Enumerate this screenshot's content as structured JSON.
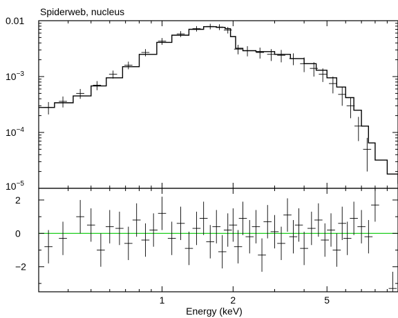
{
  "chart_data": {
    "type": "scatter",
    "title": "Spiderweb, nucleus",
    "xlabel": "Energy (keV)",
    "x_scale": "log",
    "xlim": [
      0.3,
      10
    ],
    "x_ticks": [
      {
        "value": 1,
        "label": "1"
      },
      {
        "value": 2,
        "label": "2"
      },
      {
        "value": 5,
        "label": "5"
      }
    ],
    "panels": [
      {
        "id": "spectrum",
        "y_scale": "log",
        "ylim": [
          1e-05,
          0.01
        ],
        "y_ticks": [
          {
            "value": 0.01,
            "base": "0.01",
            "exp": ""
          },
          {
            "value": 0.001,
            "base": "10",
            "exp": "−3"
          },
          {
            "value": 0.0001,
            "base": "10",
            "exp": "−4"
          },
          {
            "value": 1e-05,
            "base": "10",
            "exp": "−5"
          }
        ],
        "model_x": [
          0.3,
          0.35,
          0.42,
          0.5,
          0.58,
          0.68,
          0.8,
          0.95,
          1.1,
          1.3,
          1.5,
          1.7,
          1.85,
          1.95,
          2.05,
          2.2,
          2.5,
          3.0,
          3.5,
          4.0,
          4.5,
          5.0,
          5.5,
          6.0,
          6.5,
          7.0,
          7.5,
          8.0,
          9.0,
          10.0
        ],
        "model_y": [
          0.00028,
          0.00034,
          0.00045,
          0.00068,
          0.00095,
          0.0015,
          0.0025,
          0.0041,
          0.0055,
          0.007,
          0.0078,
          0.0076,
          0.0072,
          0.0052,
          0.0032,
          0.0029,
          0.0028,
          0.0025,
          0.0021,
          0.0017,
          0.0013,
          0.00095,
          0.00065,
          0.00042,
          0.00025,
          0.00013,
          6.5e-05,
          3.2e-05,
          1.8e-05,
          1.2e-05
        ],
        "data_x": [
          0.33,
          0.38,
          0.45,
          0.53,
          0.62,
          0.72,
          0.85,
          1.0,
          1.2,
          1.4,
          1.6,
          1.75,
          1.9,
          2.1,
          2.3,
          2.6,
          2.9,
          3.2,
          3.6,
          4.0,
          4.4,
          4.8,
          5.3,
          5.8,
          6.3,
          6.8,
          7.4
        ],
        "data_y": [
          0.00028,
          0.00036,
          0.0005,
          0.0007,
          0.0011,
          0.0016,
          0.0027,
          0.0043,
          0.0058,
          0.0072,
          0.0079,
          0.0077,
          0.0068,
          0.0031,
          0.0029,
          0.0027,
          0.0025,
          0.0024,
          0.0021,
          0.0017,
          0.0014,
          0.0011,
          0.00075,
          0.00048,
          0.0003,
          0.00013,
          5e-05
        ],
        "data_yerr": [
          7e-05,
          8e-05,
          0.0001,
          0.00013,
          0.00018,
          0.00025,
          0.0004,
          0.0006,
          0.0007,
          0.0008,
          0.0009,
          0.0009,
          0.0009,
          0.0006,
          0.0006,
          0.0006,
          0.0006,
          0.0006,
          0.0005,
          0.0005,
          0.0004,
          0.0003,
          0.00025,
          0.00018,
          0.00012,
          6e-05,
          3e-05
        ]
      },
      {
        "id": "residuals",
        "y_scale": "linear",
        "ylim": [
          -3.5,
          2.7
        ],
        "y_ticks": [
          {
            "value": 2,
            "label": "2"
          },
          {
            "value": 0,
            "label": "0"
          },
          {
            "value": -2,
            "label": "−2"
          }
        ],
        "zero_line_color": "#00c800",
        "residual_x": [
          0.33,
          0.38,
          0.45,
          0.5,
          0.55,
          0.6,
          0.66,
          0.72,
          0.78,
          0.85,
          0.92,
          1.0,
          1.1,
          1.2,
          1.3,
          1.4,
          1.5,
          1.6,
          1.7,
          1.8,
          1.9,
          2.0,
          2.1,
          2.2,
          2.35,
          2.5,
          2.65,
          2.8,
          3.0,
          3.2,
          3.4,
          3.6,
          3.8,
          4.0,
          4.3,
          4.6,
          4.9,
          5.2,
          5.5,
          5.8,
          6.1,
          6.5,
          7.0,
          7.5,
          8.0,
          9.5
        ],
        "residual_y": [
          -0.8,
          -0.3,
          1.0,
          0.5,
          -1.0,
          0.4,
          0.3,
          -0.6,
          0.8,
          -0.4,
          0.2,
          1.2,
          -0.3,
          0.6,
          -0.9,
          0.3,
          0.9,
          -0.5,
          0.4,
          -1.1,
          0.2,
          0.5,
          -0.8,
          0.9,
          -0.2,
          0.4,
          -1.3,
          0.7,
          0.1,
          -0.6,
          1.1,
          -0.2,
          0.5,
          -0.9,
          0.3,
          0.8,
          -0.4,
          0.2,
          -1.0,
          0.6,
          -0.3,
          0.9,
          0.4,
          -0.2,
          1.7,
          -3.3
        ],
        "residual_yerr": [
          1.0,
          1.0,
          1.0,
          1.0,
          1.0,
          1.0,
          1.0,
          1.0,
          1.0,
          1.0,
          1.0,
          1.0,
          1.0,
          1.0,
          1.0,
          1.0,
          1.0,
          1.0,
          1.0,
          1.0,
          1.0,
          1.0,
          1.0,
          1.0,
          1.0,
          1.0,
          1.0,
          1.0,
          1.0,
          1.0,
          1.0,
          1.0,
          1.0,
          1.0,
          1.0,
          1.0,
          1.0,
          1.0,
          1.0,
          1.0,
          1.0,
          1.0,
          1.0,
          1.0,
          1.0,
          1.0
        ]
      }
    ]
  }
}
